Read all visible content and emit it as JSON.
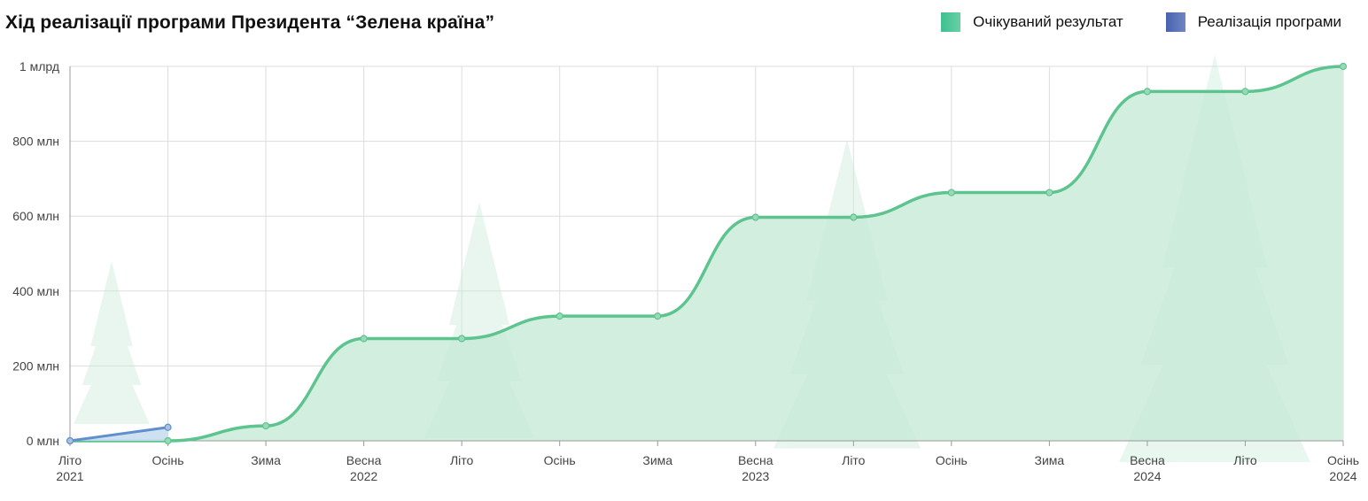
{
  "title": "Хід реалізації програми Президента “Зелена країна”",
  "legend": {
    "expected": "Очікуваний результат",
    "actual": "Реалізація програми"
  },
  "colors": {
    "expected_line": "#5ec48f",
    "expected_fill": "#d2eedf",
    "actual_line": "#5f8fcc",
    "actual_fill": "#c9def0",
    "trees": "#c6ead8",
    "grid": "#dddddd"
  },
  "chart_data": {
    "type": "area",
    "title": "Хід реалізації програми Президента “Зелена країна”",
    "x_ticks": [
      {
        "label": "Літо",
        "year": "2021"
      },
      {
        "label": "Осінь",
        "year": ""
      },
      {
        "label": "Зима",
        "year": ""
      },
      {
        "label": "Весна",
        "year": "2022"
      },
      {
        "label": "Літо",
        "year": ""
      },
      {
        "label": "Осінь",
        "year": ""
      },
      {
        "label": "Зима",
        "year": ""
      },
      {
        "label": "Весна",
        "year": "2023"
      },
      {
        "label": "Літо",
        "year": ""
      },
      {
        "label": "Осінь",
        "year": ""
      },
      {
        "label": "Зима",
        "year": ""
      },
      {
        "label": "Весна",
        "year": "2024"
      },
      {
        "label": "Літо",
        "year": ""
      },
      {
        "label": "Осінь",
        "year": "2024"
      }
    ],
    "y_ticks": [
      "0 млн",
      "200 млн",
      "400 млн",
      "600 млн",
      "800 млн",
      "1 млрд"
    ],
    "y_tick_values": [
      0,
      200,
      400,
      600,
      800,
      1000
    ],
    "ylim": [
      0,
      1000
    ],
    "grid": true,
    "legend_position": "top-right",
    "series": [
      {
        "name": "Очікуваний результат",
        "values": [
          0,
          0,
          40,
          273,
          273,
          333,
          333,
          597,
          597,
          663,
          663,
          933,
          933,
          1000
        ]
      },
      {
        "name": "Реалізація програми",
        "values": [
          0,
          36
        ]
      }
    ]
  }
}
